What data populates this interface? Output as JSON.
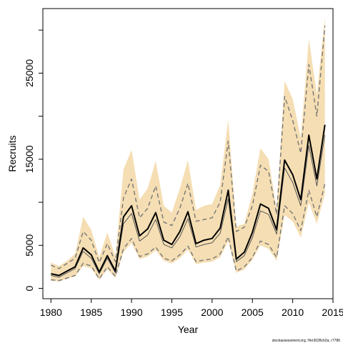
{
  "chart_data": {
    "type": "line",
    "xlabel": "Year",
    "ylabel": "Recruits",
    "xlim": [
      1979,
      2015
    ],
    "ylim": [
      -1200,
      32500
    ],
    "xticks": [
      1980,
      1985,
      1990,
      1995,
      2000,
      2005,
      2010,
      2015
    ],
    "yticks_labeled": [
      0,
      5000,
      15000,
      25000
    ],
    "yticks_minor": [
      10000,
      20000,
      30000
    ],
    "grid": false,
    "colors": {
      "band": "#f5deb3",
      "median": "#000000",
      "second": "#555555",
      "bound": "#777777"
    },
    "x": [
      1980,
      1981,
      1982,
      1983,
      1984,
      1985,
      1986,
      1987,
      1988,
      1989,
      1990,
      1991,
      1992,
      1993,
      1994,
      1995,
      1996,
      1997,
      1998,
      1999,
      2000,
      2001,
      2002,
      2003,
      2004,
      2005,
      2006,
      2007,
      2008,
      2009,
      2010,
      2011,
      2012,
      2013,
      2014
    ],
    "band": {
      "upper": [
        3000,
        2600,
        3200,
        4000,
        8300,
        6800,
        3600,
        6500,
        3700,
        13800,
        16100,
        10300,
        11600,
        14800,
        9600,
        8800,
        11600,
        14900,
        9100,
        9600,
        9800,
        12000,
        19600,
        7200,
        7500,
        11000,
        16300,
        15000,
        9200,
        24100,
        22000,
        17500,
        29000,
        22500,
        31500
      ],
      "lower": [
        900,
        800,
        1100,
        1400,
        2600,
        2300,
        1000,
        2200,
        1200,
        4200,
        5300,
        3400,
        3700,
        4400,
        3200,
        2900,
        3500,
        4500,
        2800,
        3000,
        3100,
        3600,
        5500,
        1800,
        2200,
        3300,
        5000,
        4600,
        3200,
        8500,
        7800,
        5900,
        10000,
        7500,
        11000
      ]
    },
    "series": [
      {
        "values": [
          1700,
          1500,
          2000,
          2500,
          4700,
          3900,
          1900,
          3800,
          2000,
          8300,
          9600,
          6100,
          6900,
          8800,
          5600,
          5100,
          6600,
          8900,
          5200,
          5600,
          5800,
          7000,
          11400,
          3400,
          4200,
          6500,
          9800,
          9300,
          6800,
          14900,
          13200,
          10300,
          17800,
          12700,
          19000
        ],
        "style": "solid",
        "width": 2
      },
      {
        "values": [
          1500,
          1300,
          1800,
          2300,
          4300,
          3500,
          1700,
          3500,
          1800,
          7500,
          8700,
          5500,
          6200,
          8000,
          5100,
          4700,
          6000,
          8100,
          4800,
          5100,
          5300,
          6400,
          10400,
          3100,
          3800,
          5900,
          9000,
          8600,
          6300,
          14000,
          12300,
          9600,
          16600,
          11900,
          17800
        ],
        "style": "solid",
        "width": 1
      },
      {
        "values": [
          2700,
          2300,
          2900,
          3500,
          6600,
          5600,
          3000,
          5200,
          3100,
          10500,
          12700,
          8200,
          9300,
          11900,
          7700,
          7300,
          9300,
          12200,
          7800,
          8000,
          8200,
          10000,
          17100,
          6600,
          7100,
          9600,
          14300,
          13600,
          8600,
          22300,
          19500,
          15700,
          26000,
          20000,
          30500
        ],
        "style": "dashed",
        "width": 1.4
      },
      {
        "values": [
          1000,
          900,
          1200,
          1500,
          2900,
          2600,
          1100,
          2500,
          1400,
          4600,
          5800,
          3700,
          4000,
          4800,
          3500,
          3200,
          3900,
          4900,
          3100,
          3300,
          3400,
          4000,
          6000,
          2000,
          2500,
          3600,
          5500,
          5100,
          3600,
          9600,
          8700,
          6700,
          11400,
          8300,
          12200
        ],
        "style": "dashed",
        "width": 1.4
      }
    ],
    "footer": "stockassessment.org, Her3028ch2a, r7786"
  }
}
